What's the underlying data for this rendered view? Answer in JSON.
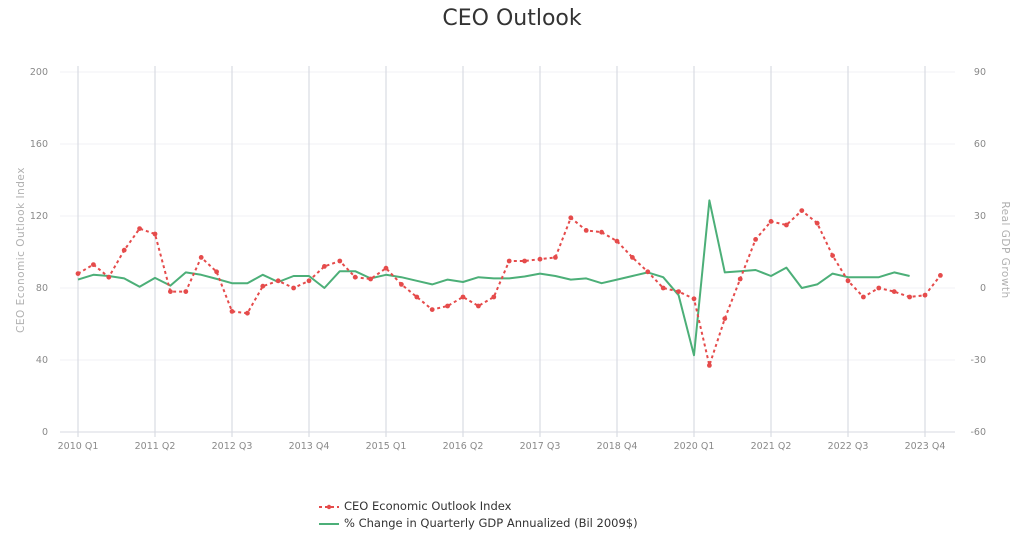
{
  "chart_data": {
    "type": "line",
    "title": "CEO Outlook",
    "y_left_label": "CEO Economic Outlook Index",
    "y_right_label": "Real GDP Growth",
    "y_left_ticks": [
      "0",
      "40",
      "80",
      "120",
      "160",
      "200"
    ],
    "y_right_ticks": [
      "-60",
      "-30",
      "0",
      "30",
      "60",
      "90"
    ],
    "ylim_left": [
      0,
      200
    ],
    "ylim_right": [
      -60,
      90
    ],
    "x_tick_labels": [
      "2010 Q1",
      "2011 Q2",
      "2012 Q3",
      "2013 Q4",
      "2015 Q1",
      "2016 Q2",
      "2017 Q3",
      "2018 Q4",
      "2020 Q1",
      "2021 Q2",
      "2022 Q3",
      "2023 Q4"
    ],
    "x_tick_every": 5,
    "grid": "vertical",
    "legend_position": "bottom",
    "colors": {
      "ceo": "#e54b4b",
      "gdp": "#4caf78"
    },
    "series": [
      {
        "name": "CEO Economic Outlook Index",
        "axis": "left",
        "style": "dotted-markers",
        "values": [
          88,
          93,
          86,
          101,
          113,
          110,
          78,
          78,
          97,
          89,
          67,
          66,
          81,
          84,
          80,
          84,
          92,
          95,
          86,
          85,
          91,
          82,
          75,
          68,
          70,
          75,
          70,
          75,
          95,
          95,
          96,
          97,
          119,
          112,
          111,
          106,
          97,
          89,
          80,
          78,
          74,
          37,
          63,
          85,
          107,
          117,
          115,
          123,
          116,
          98,
          84,
          75,
          80,
          78,
          75,
          76,
          87
        ]
      },
      {
        "name": "% Change in Quarterly GDP Annualized (Bil 2009$)",
        "axis": "right",
        "style": "solid",
        "values": [
          3.5,
          5.5,
          5.0,
          4.0,
          0.5,
          4.2,
          1.0,
          6.5,
          5.5,
          3.8,
          2.0,
          2.0,
          5.5,
          2.5,
          5.0,
          5.0,
          0.0,
          7.0,
          7.0,
          4.0,
          5.5,
          4.5,
          3.0,
          1.5,
          3.5,
          2.5,
          4.5,
          4.0,
          4.0,
          4.8,
          6.0,
          5.0,
          3.5,
          4.0,
          2.0,
          3.5,
          5.0,
          6.5,
          4.5,
          -3.0,
          -28.0,
          36.5,
          6.5,
          7.0,
          7.5,
          5.0,
          8.5,
          0.0,
          1.5,
          6.0,
          4.5,
          4.5,
          4.5,
          6.5,
          5.0
        ]
      }
    ]
  }
}
